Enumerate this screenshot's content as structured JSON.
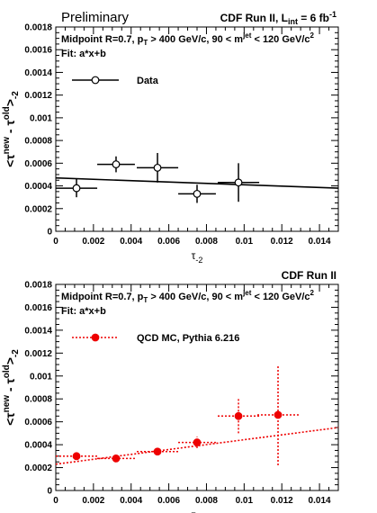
{
  "chart_data": [
    {
      "type": "scatter",
      "corner_left": "Preliminary",
      "corner_right": {
        "text": "CDF Run II, L",
        "sub": "int",
        "tail": " = 6 fb",
        "sup": "-1"
      },
      "legend": {
        "label": "Data",
        "placement": "upper-left",
        "marker": "open-circle",
        "line": "solid"
      },
      "color": "#000000",
      "fit_label": "Fit: a*x+b",
      "xlim": [
        0,
        0.015
      ],
      "ylim": [
        0,
        0.0018
      ],
      "xticks": [
        "0",
        "0.002",
        "0.004",
        "0.006",
        "0.008",
        "0.01",
        "0.012",
        "0.014"
      ],
      "yticks": [
        "0",
        "0.0002",
        "0.0004",
        "0.0006",
        "0.0008",
        "0.001",
        "0.0012",
        "0.0014",
        "0.0016",
        "0.0018"
      ],
      "points": [
        {
          "x": 0.0011,
          "y": 0.00038,
          "xerr": 0.0011,
          "yerr": 8e-05
        },
        {
          "x": 0.0032,
          "y": 0.00059,
          "xerr": 0.001,
          "yerr": 7e-05
        },
        {
          "x": 0.0054,
          "y": 0.00056,
          "xerr": 0.0011,
          "yerr": 0.00013
        },
        {
          "x": 0.0075,
          "y": 0.00033,
          "xerr": 0.001,
          "yerr": 8e-05
        },
        {
          "x": 0.0097,
          "y": 0.00043,
          "xerr": 0.0011,
          "yerr": 0.00017
        }
      ],
      "fit": {
        "x": [
          0,
          0.015
        ],
        "y": [
          0.00047,
          0.00038
        ],
        "style": "solid"
      }
    },
    {
      "type": "scatter",
      "corner_left": "",
      "corner_right": {
        "text": "CDF Run II",
        "sub": "",
        "tail": "",
        "sup": ""
      },
      "legend": {
        "label": "QCD MC, Pythia 6.216",
        "placement": "upper-left",
        "marker": "filled-circle",
        "line": "dotted"
      },
      "color": "#ee0000",
      "fit_label": "Fit: a*x+b",
      "xlim": [
        0,
        0.015
      ],
      "ylim": [
        0,
        0.0018
      ],
      "xticks": [
        "0",
        "0.002",
        "0.004",
        "0.006",
        "0.008",
        "0.01",
        "0.012",
        "0.014"
      ],
      "yticks": [
        "0",
        "0.0002",
        "0.0004",
        "0.0006",
        "0.0008",
        "0.001",
        "0.0012",
        "0.0014",
        "0.0016",
        "0.0018"
      ],
      "points": [
        {
          "x": 0.0011,
          "y": 0.0003,
          "xerr": 0.0011,
          "yerr": 2e-05
        },
        {
          "x": 0.0032,
          "y": 0.00028,
          "xerr": 0.001,
          "yerr": 2e-05
        },
        {
          "x": 0.0054,
          "y": 0.00034,
          "xerr": 0.0011,
          "yerr": 3e-05
        },
        {
          "x": 0.0075,
          "y": 0.00042,
          "xerr": 0.001,
          "yerr": 5e-05
        },
        {
          "x": 0.0097,
          "y": 0.00065,
          "xerr": 0.0011,
          "yerr": 0.00015
        },
        {
          "x": 0.0118,
          "y": 0.00066,
          "xerr": 0.0011,
          "yerr": 0.00044
        }
      ],
      "fit": {
        "x": [
          0,
          0.015
        ],
        "y": [
          0.00023,
          0.00055
        ],
        "style": "dotted"
      }
    }
  ],
  "selection_label": {
    "prefix": "Midpoint R=0.7, p",
    "pt_sub": "T",
    "cut1": " > 400 GeV/c, 90 < m",
    "m_sup": "jet",
    "cut2": " < 120 GeV/c",
    "c_sup": "2"
  },
  "axis_labels": {
    "x_base": "τ",
    "x_sub": "-2",
    "y_open": "<τ",
    "y_new_sup": "new",
    "y_minus": " - τ",
    "y_old_sup": "old",
    "y_close": ">",
    "y_sub": "-2"
  }
}
